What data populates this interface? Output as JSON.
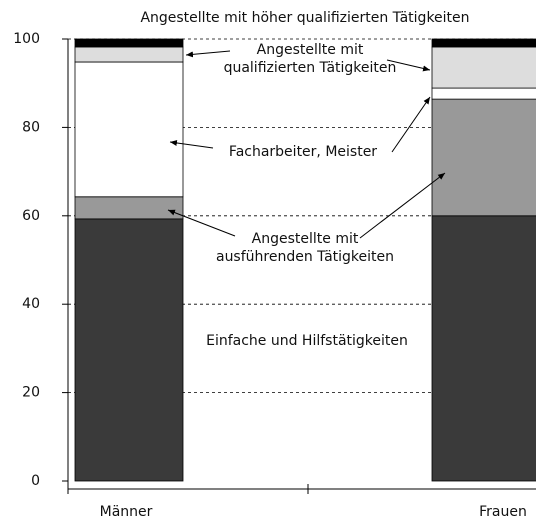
{
  "chart_data": {
    "type": "stacked-bar",
    "categories": [
      "Männer",
      "Frauen"
    ],
    "series": [
      {
        "name": "Einfache und Hilfstätigkeiten",
        "color": "#3a3a3a",
        "values": [
          59.3,
          60
        ]
      },
      {
        "name": "Angestellte mit ausführenden Tätigkeiten",
        "color": "#999999",
        "values": [
          5,
          26.4
        ]
      },
      {
        "name": "Facharbeiter, Meister",
        "color": "#ffffff",
        "values": [
          30.5,
          2.5
        ]
      },
      {
        "name": "Angestellte mit qualifizierten Tätigkeiten",
        "color": "#dddddd",
        "values": [
          3.4,
          9.3
        ]
      },
      {
        "name": "Angestellte mit höher qualifizierten Tätigkeiten",
        "color": "#000000",
        "values": [
          1.8,
          1.8
        ]
      }
    ],
    "ylim": [
      0,
      100
    ],
    "yticks": [
      0,
      20,
      40,
      60,
      80,
      100
    ],
    "grid": true
  }
}
